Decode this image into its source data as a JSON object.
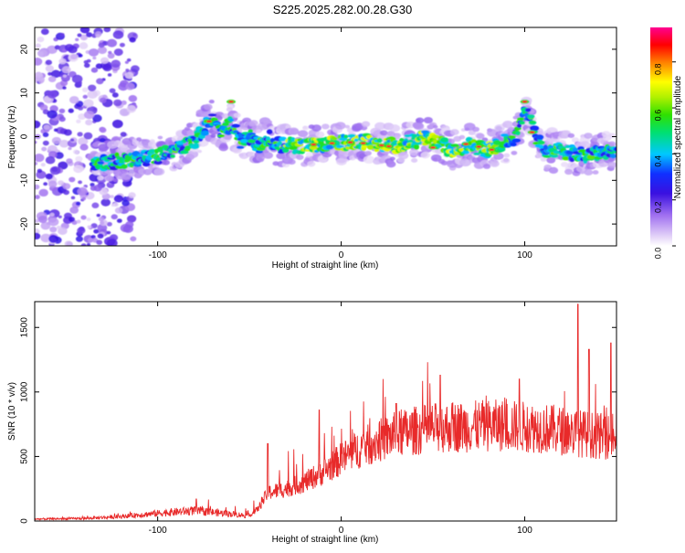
{
  "title": "S225.2025.282.00.28.G30",
  "chart_data": [
    {
      "type": "heatmap",
      "title": "S225.2025.282.00.28.G30",
      "xlabel": "Height of straight line (km)",
      "ylabel": "Frequency (Hz)",
      "xlim": [
        -167,
        150
      ],
      "ylim": [
        -25,
        25
      ],
      "xticks": [
        -100,
        0,
        100
      ],
      "yticks": [
        -20,
        -10,
        0,
        10,
        20
      ],
      "colorbar": {
        "label": "Normalized spectral amplitude",
        "range": [
          0,
          0.95
        ],
        "ticks": [
          0.0,
          0.2,
          0.4,
          0.6,
          0.8
        ],
        "tick_labels": [
          "0.0",
          "0.2",
          "0.4",
          "0.6",
          "0.8"
        ]
      },
      "ridge": {
        "x": [
          -140,
          -130,
          -120,
          -110,
          -100,
          -90,
          -80,
          -75,
          -70,
          -65,
          -60,
          -55,
          -50,
          -45,
          -40,
          -35,
          -30,
          -20,
          -10,
          0,
          10,
          20,
          30,
          40,
          45,
          50,
          60,
          70,
          80,
          90,
          95,
          100,
          103,
          105,
          110,
          120,
          130,
          140,
          150
        ],
        "y": [
          -6,
          -6,
          -5.5,
          -5,
          -4.5,
          -3,
          -1,
          2,
          4,
          1,
          3,
          -1,
          0,
          -2,
          0,
          -2,
          -2,
          -2,
          -2,
          -1.5,
          -1,
          -1.5,
          -2,
          -1,
          0,
          -1,
          -3,
          -2,
          -3,
          -1,
          0,
          6,
          4,
          1,
          -3,
          -3.5,
          -4,
          -4,
          -3
        ]
      }
    },
    {
      "type": "line",
      "xlabel": "Height of straight line (km)",
      "ylabel": "SNR (10 * v/v)",
      "xlim": [
        -167,
        150
      ],
      "ylim": [
        0,
        1700
      ],
      "xticks": [
        -100,
        0,
        100
      ],
      "yticks": [
        0,
        500,
        1000,
        1500
      ],
      "color": "#e82a2a",
      "trend": {
        "x": [
          -167,
          -140,
          -120,
          -100,
          -80,
          -60,
          -50,
          -45,
          -40,
          -30,
          -20,
          -10,
          0,
          10,
          20,
          30,
          40,
          50,
          60,
          70,
          80,
          90,
          100,
          110,
          120,
          130,
          140,
          150
        ],
        "y": [
          15,
          20,
          35,
          60,
          80,
          55,
          40,
          100,
          220,
          250,
          300,
          380,
          480,
          560,
          620,
          670,
          700,
          720,
          730,
          730,
          740,
          740,
          730,
          720,
          700,
          680,
          660,
          650
        ]
      },
      "peaks": [
        {
          "x": -79,
          "y": 170
        },
        {
          "x": -40,
          "y": 600
        },
        {
          "x": -12,
          "y": 860
        },
        {
          "x": 30,
          "y": 910
        },
        {
          "x": 54,
          "y": 1130
        },
        {
          "x": 97,
          "y": 1100
        },
        {
          "x": 129,
          "y": 1680
        },
        {
          "x": 135,
          "y": 1330
        },
        {
          "x": 147,
          "y": 1380
        }
      ]
    }
  ]
}
